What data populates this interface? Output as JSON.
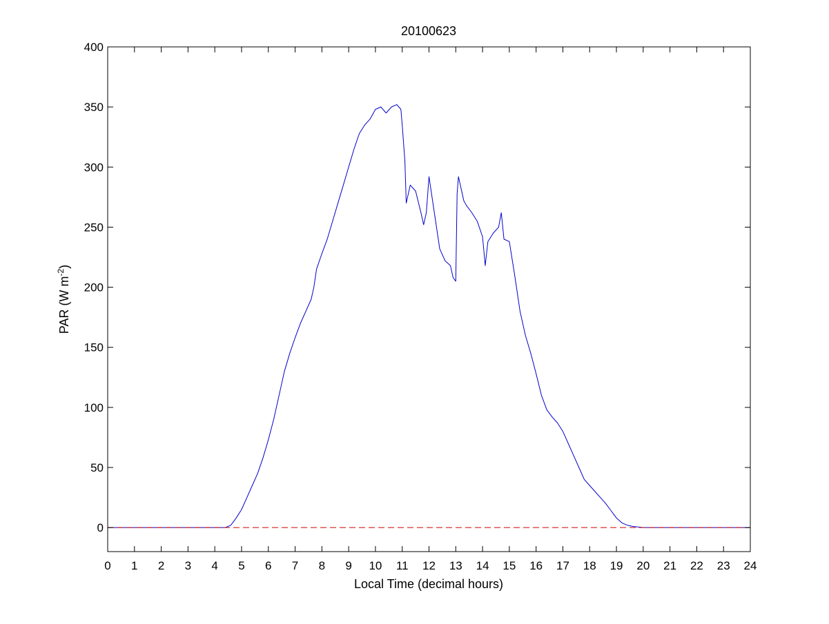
{
  "chart_data": {
    "type": "line",
    "title": "20100623",
    "xlabel": "Local Time (decimal hours)",
    "ylabel": {
      "main": "PAR (W m",
      "superscript": "-2",
      "close": ")"
    },
    "xlim": [
      0,
      24
    ],
    "ylim": [
      -20,
      400
    ],
    "xticks": [
      0,
      1,
      2,
      3,
      4,
      5,
      6,
      7,
      8,
      9,
      10,
      11,
      12,
      13,
      14,
      15,
      16,
      17,
      18,
      19,
      20,
      21,
      22,
      23,
      24
    ],
    "yticks": [
      0,
      50,
      100,
      150,
      200,
      250,
      300,
      350,
      400
    ],
    "grid": false,
    "legend": "none",
    "series": [
      {
        "color": "#0000cc",
        "style": "solid",
        "x": [
          0,
          4.4,
          4.6,
          4.8,
          5.0,
          5.2,
          5.4,
          5.6,
          5.8,
          6.0,
          6.2,
          6.4,
          6.6,
          6.8,
          7.0,
          7.2,
          7.4,
          7.6,
          7.7,
          7.8,
          8.0,
          8.2,
          8.4,
          8.6,
          8.8,
          9.0,
          9.2,
          9.4,
          9.6,
          9.8,
          10.0,
          10.2,
          10.4,
          10.6,
          10.8,
          10.95,
          11.0,
          11.1,
          11.15,
          11.3,
          11.5,
          11.7,
          11.8,
          11.9,
          12.0,
          12.2,
          12.4,
          12.6,
          12.8,
          12.9,
          13.0,
          13.05,
          13.1,
          13.2,
          13.3,
          13.4,
          13.6,
          13.8,
          14.0,
          14.1,
          14.2,
          14.4,
          14.6,
          14.7,
          14.8,
          15.0,
          15.2,
          15.4,
          15.6,
          15.8,
          16.0,
          16.2,
          16.4,
          16.6,
          16.8,
          17.0,
          17.2,
          17.4,
          17.6,
          17.8,
          18.0,
          18.2,
          18.4,
          18.6,
          18.8,
          19.0,
          19.2,
          19.4,
          19.6,
          19.8,
          20.0,
          24.0
        ],
        "y": [
          0,
          0,
          2,
          8,
          15,
          25,
          35,
          45,
          58,
          73,
          90,
          110,
          130,
          145,
          158,
          170,
          180,
          190,
          200,
          215,
          228,
          240,
          255,
          270,
          285,
          300,
          315,
          328,
          335,
          340,
          348,
          350,
          345,
          350,
          352,
          348,
          335,
          305,
          270,
          285,
          280,
          262,
          252,
          262,
          292,
          262,
          232,
          222,
          218,
          208,
          205,
          278,
          292,
          282,
          272,
          268,
          262,
          255,
          242,
          218,
          238,
          245,
          250,
          262,
          240,
          238,
          210,
          180,
          160,
          145,
          128,
          110,
          98,
          92,
          87,
          80,
          70,
          60,
          50,
          40,
          35,
          30,
          25,
          20,
          14,
          8,
          4,
          2,
          1,
          0.5,
          0,
          0
        ]
      },
      {
        "color": "#cc0000",
        "style": "dashed",
        "x": [
          0,
          24
        ],
        "y": [
          0,
          0
        ]
      }
    ]
  }
}
